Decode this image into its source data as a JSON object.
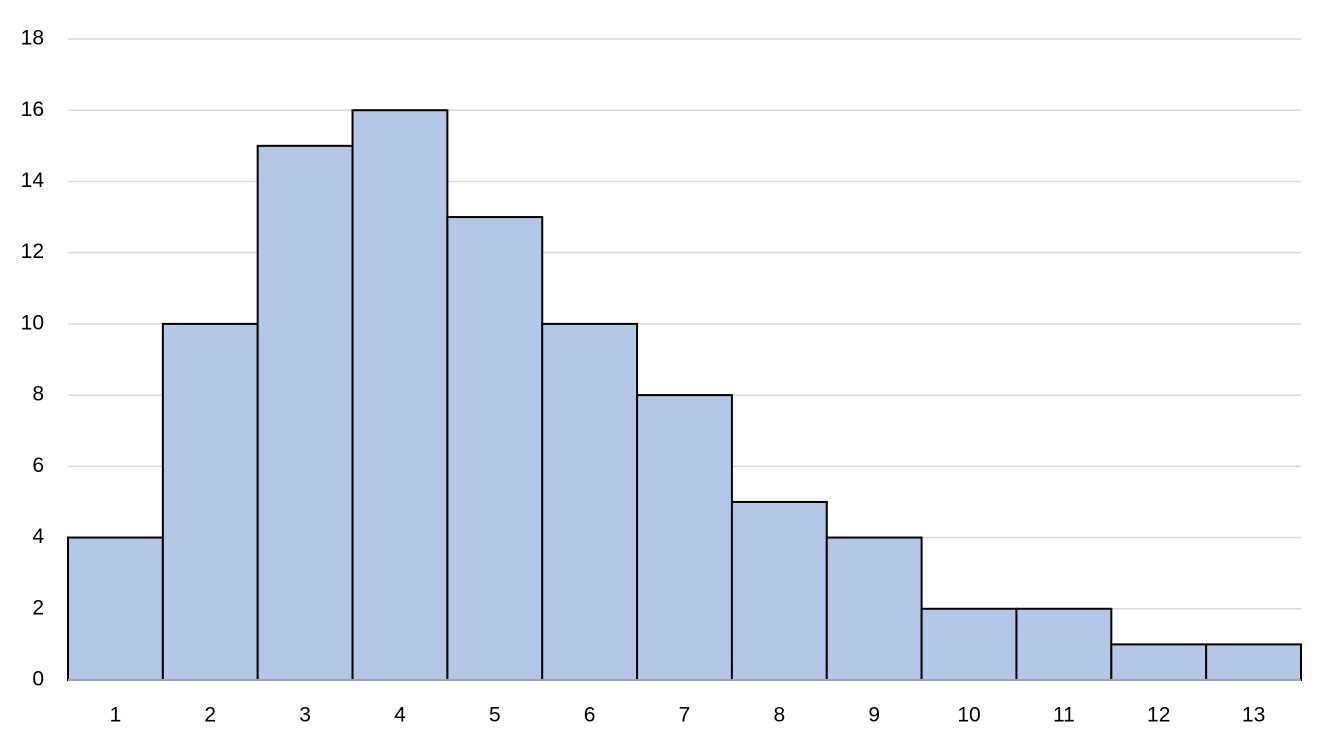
{
  "chart_data": {
    "type": "bar",
    "categories": [
      "1",
      "2",
      "3",
      "4",
      "5",
      "6",
      "7",
      "8",
      "9",
      "10",
      "11",
      "12",
      "13"
    ],
    "values": [
      4,
      10,
      15,
      16,
      13,
      10,
      8,
      5,
      4,
      2,
      2,
      1,
      1
    ],
    "color": "#b4c7e7",
    "edgecolor": "#000000",
    "ylim": [
      0,
      18
    ],
    "yticks": [
      0,
      2,
      4,
      6,
      8,
      10,
      12,
      14,
      16,
      18
    ],
    "grid": true
  }
}
